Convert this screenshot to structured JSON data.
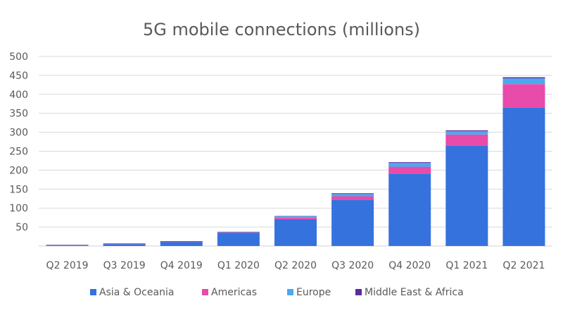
{
  "chart_data": {
    "type": "bar",
    "stacked": true,
    "title": "5G mobile connections (millions)",
    "xlabel": "",
    "ylabel": "",
    "ylim": [
      0,
      500
    ],
    "yticks": [
      50,
      100,
      150,
      200,
      250,
      300,
      350,
      400,
      450,
      500
    ],
    "grid": true,
    "legend_position": "bottom",
    "categories": [
      "Q2 2019",
      "Q3 2019",
      "Q4 2019",
      "Q1 2020",
      "Q2 2020",
      "Q3 2020",
      "Q4 2020",
      "Q1 2021",
      "Q2 2021"
    ],
    "series": [
      {
        "name": "Asia & Oceania",
        "color": "#3572de",
        "values": [
          2,
          5,
          11,
          35,
          71,
          122,
          191,
          264,
          365
        ]
      },
      {
        "name": "Americas",
        "color": "#e84ba9",
        "values": [
          0.2,
          0.5,
          0.5,
          1,
          4,
          9,
          18,
          30,
          62
        ]
      },
      {
        "name": "Europe",
        "color": "#4ba9f0",
        "values": [
          0.2,
          0.5,
          0.5,
          1,
          3,
          6,
          10,
          9,
          15
        ]
      },
      {
        "name": "Middle East & Africa",
        "color": "#5b2ca0",
        "values": [
          0.6,
          1,
          1,
          0.5,
          1,
          2,
          2,
          2,
          3
        ]
      }
    ]
  }
}
